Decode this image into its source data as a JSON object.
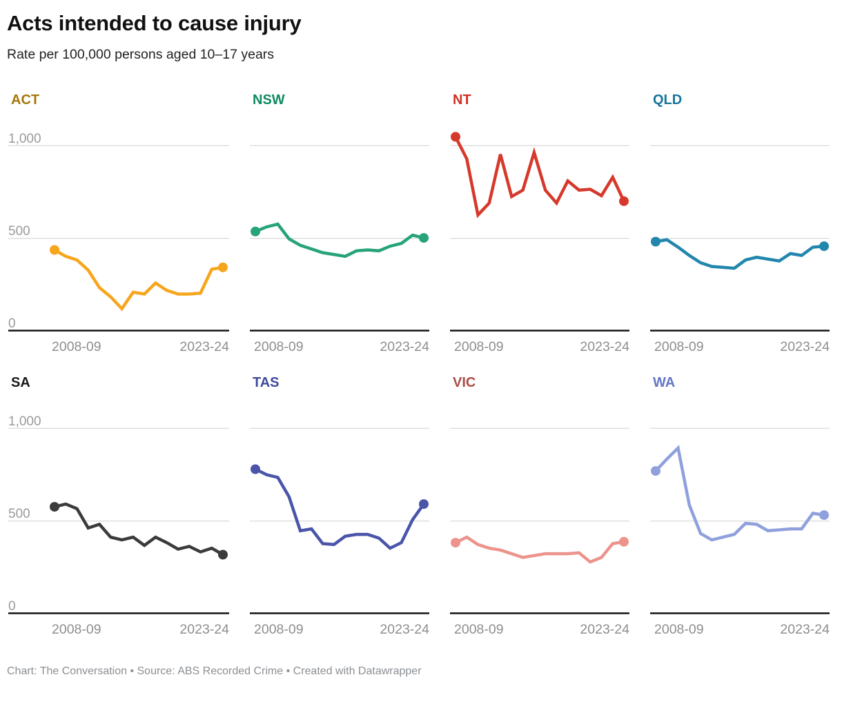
{
  "header": {
    "title": "Acts intended to cause injury",
    "subtitle": "Rate per 100,000 persons aged 10–17 years"
  },
  "footer": {
    "text": "Chart: The Conversation • Source: ABS Recorded Crime • Created with Datawrapper"
  },
  "chart_data": {
    "type": "line",
    "layout": "small-multiples-4x2",
    "title": "Acts intended to cause injury",
    "subtitle": "Rate per 100,000 persons aged 10–17 years",
    "grid": "horizontal",
    "x_first_label": "2008-09",
    "x_last_label": "2023-24",
    "years": [
      "2008-09",
      "2009-10",
      "2010-11",
      "2011-12",
      "2012-13",
      "2013-14",
      "2014-15",
      "2015-16",
      "2016-17",
      "2017-18",
      "2018-19",
      "2019-20",
      "2020-21",
      "2021-22",
      "2022-23",
      "2023-24"
    ],
    "y_axis": {
      "ticks": [
        0,
        500,
        1000
      ],
      "tick_labels": [
        "0",
        "500",
        "1,000"
      ],
      "ylim": [
        0,
        1160
      ],
      "labels_shown_on": "first-column-only"
    },
    "colors": {
      "gridline": "#dcdcdc",
      "axis_line": "#141414",
      "tick_text": "#9a9a9a"
    },
    "panels": [
      {
        "id": "act",
        "label": "ACT",
        "label_color": "#a8760b",
        "line_color": "#f7a51c",
        "values": [
          435,
          400,
          380,
          325,
          230,
          180,
          115,
          205,
          195,
          255,
          215,
          195,
          195,
          200,
          330,
          340
        ]
      },
      {
        "id": "nsw",
        "label": "NSW",
        "label_color": "#0e8a61",
        "line_color": "#27a37a",
        "values": [
          535,
          560,
          575,
          495,
          460,
          440,
          420,
          410,
          400,
          430,
          435,
          430,
          455,
          470,
          515,
          500
        ]
      },
      {
        "id": "nt",
        "label": "NT",
        "label_color": "#d02f23",
        "line_color": "#d6392c",
        "values": [
          1050,
          930,
          625,
          690,
          955,
          725,
          760,
          965,
          760,
          690,
          810,
          760,
          765,
          730,
          830,
          700
        ]
      },
      {
        "id": "qld",
        "label": "QLD",
        "label_color": "#17759c",
        "line_color": "#2286ad",
        "values": [
          480,
          490,
          450,
          405,
          365,
          345,
          340,
          335,
          380,
          395,
          385,
          375,
          415,
          405,
          450,
          455
        ]
      },
      {
        "id": "sa",
        "label": "SA",
        "label_color": "#191919",
        "line_color": "#3b3b3b",
        "values": [
          575,
          590,
          565,
          460,
          480,
          410,
          395,
          410,
          365,
          410,
          380,
          345,
          360,
          330,
          350,
          315
        ]
      },
      {
        "id": "tas",
        "label": "TAS",
        "label_color": "#3f4a9b",
        "line_color": "#4a55a9",
        "values": [
          780,
          750,
          735,
          630,
          445,
          455,
          375,
          370,
          415,
          425,
          425,
          405,
          350,
          380,
          505,
          590
        ]
      },
      {
        "id": "vic",
        "label": "VIC",
        "label_color": "#aa4f46",
        "line_color": "#ec938b",
        "values": [
          380,
          410,
          370,
          350,
          340,
          320,
          300,
          310,
          320,
          320,
          320,
          325,
          275,
          300,
          375,
          385
        ]
      },
      {
        "id": "wa",
        "label": "WA",
        "label_color": "#6576c4",
        "line_color": "#8fa0dc",
        "values": [
          770,
          835,
          895,
          585,
          430,
          395,
          410,
          425,
          485,
          480,
          445,
          450,
          455,
          455,
          540,
          530
        ]
      }
    ]
  }
}
